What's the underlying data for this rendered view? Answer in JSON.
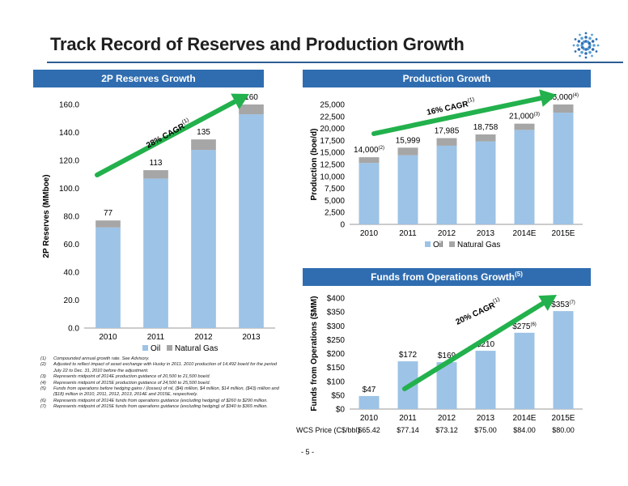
{
  "page": {
    "title": "Track Record of Reserves and Production Growth",
    "page_number": "- 5 -",
    "footnotes": [
      {
        "n": "(1)",
        "text": "Compounded annual growth rate. See Advisory."
      },
      {
        "n": "(2)",
        "text": "Adjusted to reflect impact of asset exchange with Husky in 2011. 2010 production of 14,492 boe/d for the period July 22 to Dec. 31, 2010 before the adjustment."
      },
      {
        "n": "(3)",
        "text": "Represents midpoint of 2014E production guidance of 20,500 to 21,500 boe/d."
      },
      {
        "n": "(4)",
        "text": "Represents midpoint of 2015E production guidance of 24,500 to 25,500 boe/d."
      },
      {
        "n": "(5)",
        "text": "Funds from operations before hedging gains / (losses) of nil, ($4) million, $4 million, $14 million, ($43) million and ($18) million in 2010, 2011, 2012, 2013, 2014E and 2015E, respectively."
      },
      {
        "n": "(6)",
        "text": "Represents midpoint of 2014E funds from operations guidance (excluding hedging) of $260 to $290 million."
      },
      {
        "n": "(7)",
        "text": "Represents midpoint of 2015E funds from operations guidance (excluding hedging) of $340 to $365 million."
      }
    ]
  },
  "colors": {
    "oil": "#9dc3e6",
    "gas": "#a6a6a6",
    "arrow": "#22b14c",
    "header": "#2f6db0"
  },
  "panels": {
    "reserves_header": "2P Reserves Growth",
    "production_header": "Production Growth",
    "ffo_header": "Funds from Operations Growth",
    "ffo_header_sup": "(5)"
  },
  "chart_data": [
    {
      "type": "bar",
      "stacked": true,
      "ylabel": "2P Reserves (MMboe)",
      "ylim": [
        0,
        160
      ],
      "yticks": [
        "0.0",
        "20.0",
        "40.0",
        "60.0",
        "80.0",
        "100.0",
        "120.0",
        "140.0",
        "160.0"
      ],
      "categories": [
        "2010",
        "2011",
        "2012",
        "2013"
      ],
      "series": [
        {
          "name": "Oil",
          "values": [
            72,
            107,
            127.5,
            153
          ]
        },
        {
          "name": "Natural Gas",
          "values": [
            5,
            6,
            7.5,
            7
          ]
        }
      ],
      "totals": [
        "77",
        "113",
        "135",
        "160"
      ],
      "annotation": {
        "text": "28% CAGR",
        "sup": "(1)"
      },
      "legend": "bottom"
    },
    {
      "type": "bar",
      "stacked": true,
      "ylabel": "Production (boe/d)",
      "ylim": [
        0,
        25000
      ],
      "yticks": [
        "0",
        "2,500",
        "5,000",
        "7,500",
        "10,000",
        "12,500",
        "15,000",
        "17,500",
        "20,000",
        "22,500",
        "25,000"
      ],
      "categories": [
        "2010",
        "2011",
        "2012",
        "2013",
        "2014E",
        "2015E"
      ],
      "series": [
        {
          "name": "Oil",
          "values": [
            12800,
            14400,
            16400,
            17300,
            19700,
            23300
          ]
        },
        {
          "name": "Natural Gas",
          "values": [
            1200,
            1599,
            1585,
            1458,
            1300,
            1700
          ]
        }
      ],
      "totals": [
        {
          "text": "14,000",
          "sup": "(2)"
        },
        {
          "text": "15,999",
          "sup": ""
        },
        {
          "text": "17,985",
          "sup": ""
        },
        {
          "text": "18,758",
          "sup": ""
        },
        {
          "text": "21,000",
          "sup": "(3)"
        },
        {
          "text": "25,000",
          "sup": "(4)"
        }
      ],
      "annotation": {
        "text": "16% CAGR",
        "sup": "(1)"
      },
      "legend": "bottom"
    },
    {
      "type": "bar",
      "ylabel": "Funds from Operations ($MM)",
      "ylim": [
        0,
        400
      ],
      "yticks": [
        "$0",
        "$50",
        "$100",
        "$150",
        "$200",
        "$250",
        "$300",
        "$350",
        "$400"
      ],
      "categories": [
        "2010",
        "2011",
        "2012",
        "2013",
        "2014E",
        "2015E"
      ],
      "values": [
        47,
        172,
        169,
        210,
        275,
        353
      ],
      "labels": [
        {
          "text": "$47",
          "sup": ""
        },
        {
          "text": "$172",
          "sup": ""
        },
        {
          "text": "$169",
          "sup": ""
        },
        {
          "text": "$210",
          "sup": ""
        },
        {
          "text": "$275",
          "sup": "(6)"
        },
        {
          "text": "$353",
          "sup": "(7)"
        }
      ],
      "annotation": {
        "text": "20% CAGR",
        "sup": "(1)"
      },
      "wcs": {
        "label": "WCS Price (C$/bbl)",
        "values": [
          "$65.42",
          "$77.14",
          "$73.12",
          "$75.00",
          "$84.00",
          "$80.00"
        ]
      }
    }
  ]
}
